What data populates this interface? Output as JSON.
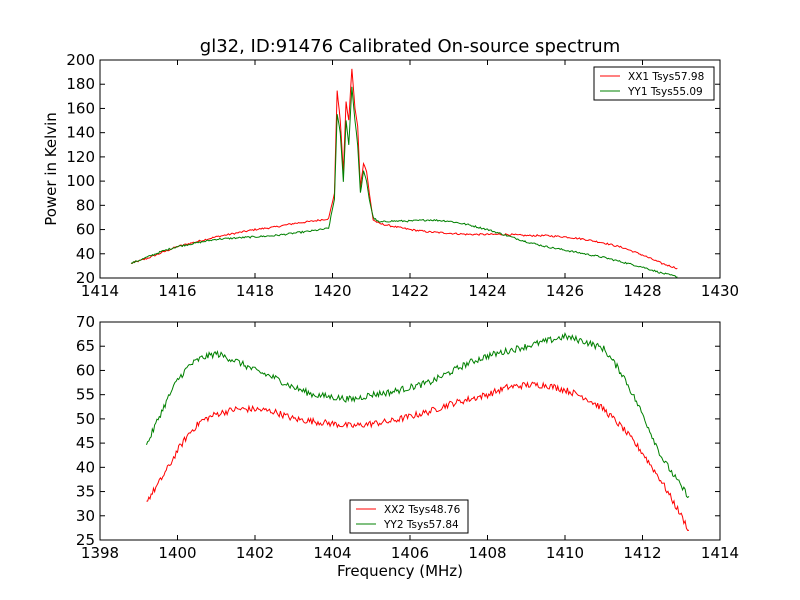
{
  "title": "gl32, ID:91476 Calibrated On-source spectrum",
  "chart_data": [
    {
      "type": "line",
      "ylabel": "Power in Kelvin",
      "xlabel": "",
      "xlim": [
        1414,
        1430
      ],
      "ylim": [
        20,
        200
      ],
      "xticks": [
        1414,
        1416,
        1418,
        1420,
        1422,
        1424,
        1426,
        1428,
        1430
      ],
      "yticks": [
        20,
        40,
        60,
        80,
        100,
        120,
        140,
        160,
        180,
        200
      ],
      "legend_position": "top-right",
      "series": [
        {
          "name": "XX1 Tsys57.98",
          "color": "#ff0000",
          "x": [
            1414.8,
            1415.2,
            1415.6,
            1416.0,
            1416.5,
            1417.0,
            1417.5,
            1418.0,
            1418.5,
            1419.0,
            1419.5,
            1419.9,
            1420.05,
            1420.12,
            1420.2,
            1420.28,
            1420.35,
            1420.42,
            1420.5,
            1420.58,
            1420.65,
            1420.72,
            1420.8,
            1420.88,
            1420.95,
            1421.05,
            1421.2,
            1421.5,
            1422.0,
            1422.5,
            1423.0,
            1423.5,
            1424.0,
            1424.5,
            1425.0,
            1425.5,
            1426.0,
            1426.5,
            1427.0,
            1427.5,
            1428.0,
            1428.5,
            1428.9
          ],
          "y": [
            32,
            36,
            41,
            46,
            50,
            54,
            57,
            60,
            62,
            65,
            67,
            69,
            90,
            175,
            150,
            108,
            165,
            150,
            193,
            160,
            145,
            95,
            115,
            108,
            90,
            68,
            65,
            63,
            60,
            58,
            57,
            56,
            56,
            56,
            55,
            55,
            54,
            52,
            49,
            45,
            39,
            32,
            28
          ]
        },
        {
          "name": "YY1 Tsys55.09",
          "color": "#008000",
          "x": [
            1414.8,
            1415.2,
            1415.6,
            1416.0,
            1416.5,
            1417.0,
            1417.5,
            1418.0,
            1418.5,
            1419.0,
            1419.5,
            1419.9,
            1420.05,
            1420.12,
            1420.2,
            1420.28,
            1420.35,
            1420.42,
            1420.5,
            1420.58,
            1420.65,
            1420.72,
            1420.8,
            1420.88,
            1420.95,
            1421.05,
            1421.2,
            1421.5,
            1422.0,
            1422.5,
            1423.0,
            1423.5,
            1424.0,
            1424.5,
            1425.0,
            1425.5,
            1426.0,
            1426.5,
            1427.0,
            1427.5,
            1428.0,
            1428.5,
            1428.9
          ],
          "y": [
            32,
            37,
            42,
            46,
            49,
            52,
            53,
            54,
            55,
            57,
            59,
            61,
            85,
            155,
            140,
            100,
            150,
            130,
            178,
            150,
            130,
            90,
            108,
            100,
            85,
            70,
            66,
            67,
            67,
            68,
            67,
            64,
            60,
            55,
            50,
            46,
            43,
            40,
            37,
            33,
            29,
            24,
            21
          ]
        }
      ]
    },
    {
      "type": "line",
      "ylabel": "",
      "xlabel": "Frequency (MHz)",
      "xlim": [
        1398,
        1414
      ],
      "ylim": [
        25,
        70
      ],
      "xticks": [
        1398,
        1400,
        1402,
        1404,
        1406,
        1408,
        1410,
        1412,
        1414
      ],
      "yticks": [
        25,
        30,
        35,
        40,
        45,
        50,
        55,
        60,
        65,
        70
      ],
      "legend_position": "bottom-center",
      "series": [
        {
          "name": "XX2 Tsys48.76",
          "color": "#ff0000",
          "x": [
            1399.2,
            1399.5,
            1399.8,
            1400.0,
            1400.3,
            1400.6,
            1401.0,
            1401.5,
            1402.0,
            1402.5,
            1403.0,
            1403.5,
            1404.0,
            1404.5,
            1405.0,
            1405.5,
            1406.0,
            1406.5,
            1407.0,
            1407.5,
            1408.0,
            1408.5,
            1409.0,
            1409.5,
            1410.0,
            1410.5,
            1411.0,
            1411.5,
            1412.0,
            1412.5,
            1413.0,
            1413.2
          ],
          "y": [
            33,
            36.5,
            40.5,
            43.5,
            47,
            49.5,
            51,
            52,
            52,
            51.5,
            50,
            49.5,
            49,
            48.5,
            49,
            49.5,
            50.5,
            51.5,
            53,
            54,
            55,
            56.5,
            57,
            57,
            56,
            54.5,
            52,
            48,
            43,
            37,
            30,
            27
          ]
        },
        {
          "name": "YY2 Tsys57.84",
          "color": "#008000",
          "x": [
            1399.2,
            1399.5,
            1399.8,
            1400.0,
            1400.3,
            1400.6,
            1401.0,
            1401.5,
            1402.0,
            1402.5,
            1403.0,
            1403.5,
            1404.0,
            1404.5,
            1405.0,
            1405.5,
            1406.0,
            1406.5,
            1407.0,
            1407.5,
            1408.0,
            1408.5,
            1409.0,
            1409.5,
            1410.0,
            1410.5,
            1411.0,
            1411.5,
            1412.0,
            1412.5,
            1413.0,
            1413.2
          ],
          "y": [
            44.5,
            50,
            55,
            58,
            61,
            62.5,
            63.5,
            62,
            60,
            58.5,
            56.5,
            55,
            54.5,
            54,
            55,
            55.5,
            56.5,
            57.5,
            59.5,
            61.5,
            63,
            64,
            65,
            66,
            67,
            66,
            64.5,
            59,
            51,
            42,
            36,
            34
          ]
        }
      ]
    }
  ]
}
